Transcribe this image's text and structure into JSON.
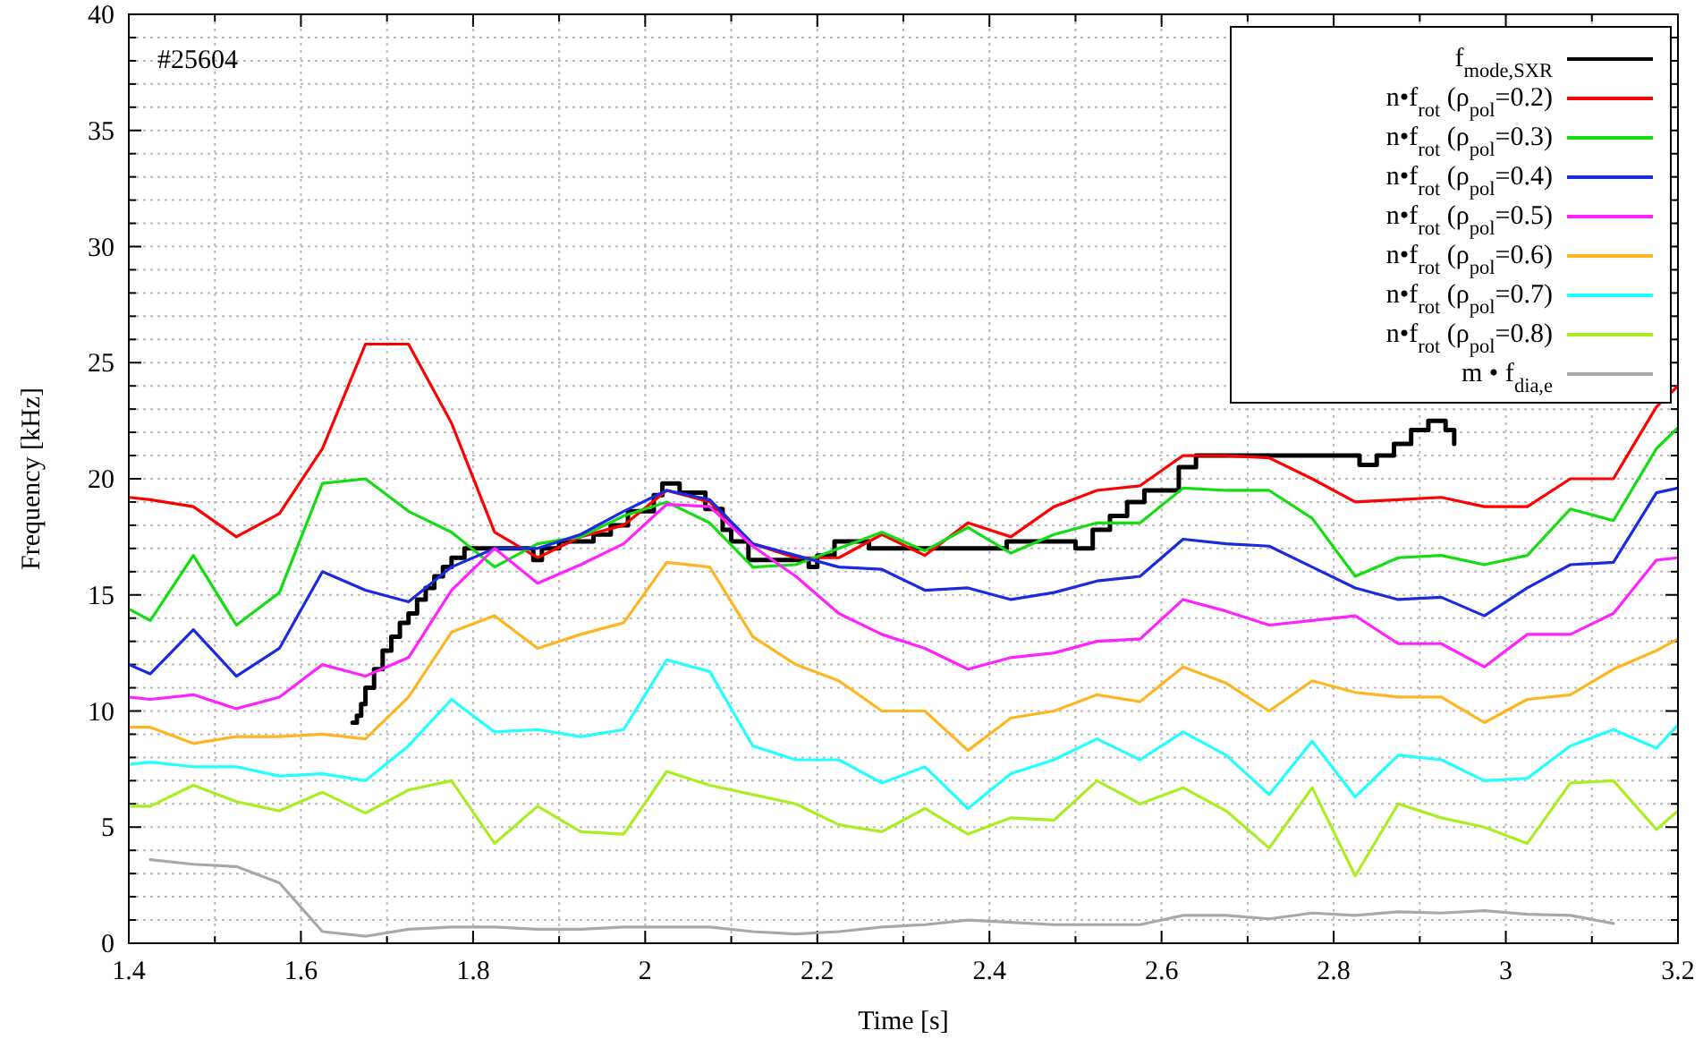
{
  "chart_data": {
    "type": "line",
    "xlabel": "Time [s]",
    "ylabel": "Frequency [kHz]",
    "annotations": [
      "#25604"
    ],
    "xlim": [
      1.4,
      3.2
    ],
    "ylim": [
      0,
      40
    ],
    "xticks": [
      1.4,
      {
        "value": 1.5,
        "label": null
      },
      1.6,
      {
        "value": 1.7,
        "label": null
      },
      1.8,
      {
        "value": 1.9,
        "label": null
      },
      2,
      {
        "value": 2.1,
        "label": null
      },
      2.2,
      {
        "value": 2.3,
        "label": null
      },
      2.4,
      {
        "value": 2.5,
        "label": null
      },
      2.6,
      {
        "value": 2.7,
        "label": null
      },
      2.8,
      {
        "value": 2.9,
        "label": null
      },
      3,
      {
        "value": 3.1,
        "label": null
      },
      3.2
    ],
    "yticks": [
      0,
      {
        "value": 1,
        "label": null
      },
      {
        "value": 2,
        "label": null
      },
      {
        "value": 3,
        "label": null
      },
      {
        "value": 4,
        "label": null
      },
      5,
      {
        "value": 6,
        "label": null
      },
      {
        "value": 7,
        "label": null
      },
      {
        "value": 8,
        "label": null
      },
      {
        "value": 9,
        "label": null
      },
      10,
      {
        "value": 11,
        "label": null
      },
      {
        "value": 12,
        "label": null
      },
      {
        "value": 13,
        "label": null
      },
      {
        "value": 14,
        "label": null
      },
      15,
      {
        "value": 16,
        "label": null
      },
      {
        "value": 17,
        "label": null
      },
      {
        "value": 18,
        "label": null
      },
      {
        "value": 19,
        "label": null
      },
      20,
      {
        "value": 21,
        "label": null
      },
      {
        "value": 22,
        "label": null
      },
      {
        "value": 23,
        "label": null
      },
      {
        "value": 24,
        "label": null
      },
      25,
      {
        "value": 26,
        "label": null
      },
      {
        "value": 27,
        "label": null
      },
      {
        "value": 28,
        "label": null
      },
      {
        "value": 29,
        "label": null
      },
      30,
      {
        "value": 31,
        "label": null
      },
      {
        "value": 32,
        "label": null
      },
      {
        "value": 33,
        "label": null
      },
      {
        "value": 34,
        "label": null
      },
      35,
      {
        "value": 36,
        "label": null
      },
      {
        "value": 37,
        "label": null
      },
      {
        "value": 38,
        "label": null
      },
      {
        "value": 39,
        "label": null
      },
      40
    ],
    "grid": true,
    "legend": "top right",
    "marker": "none",
    "line_style": "solid",
    "x": [
      1.4,
      1.425,
      1.475,
      1.525,
      1.575,
      1.625,
      1.675,
      1.725,
      1.775,
      1.825,
      1.875,
      1.925,
      1.975,
      2.025,
      2.075,
      2.125,
      2.175,
      2.225,
      2.275,
      2.325,
      2.375,
      2.425,
      2.475,
      2.525,
      2.575,
      2.625,
      2.675,
      2.725,
      2.775,
      2.825,
      2.875,
      2.925,
      2.975,
      3.025,
      3.075,
      3.125,
      3.175,
      3.2
    ],
    "series": [
      {
        "name": "f$_{mode,SXR}$",
        "color": "#000000",
        "type": "step",
        "x": [
          1.66,
          1.665,
          1.67,
          1.675,
          1.685,
          1.695,
          1.705,
          1.715,
          1.725,
          1.735,
          1.745,
          1.755,
          1.765,
          1.775,
          1.79,
          1.87,
          1.88,
          1.9,
          1.94,
          1.96,
          1.98,
          2.01,
          2.02,
          2.04,
          2.07,
          2.09,
          2.1,
          2.12,
          2.19,
          2.2,
          2.22,
          2.26,
          2.42,
          2.5,
          2.52,
          2.54,
          2.56,
          2.58,
          2.62,
          2.64,
          2.83,
          2.85,
          2.87,
          2.89,
          2.91,
          2.93,
          2.94
        ],
        "values": [
          9.5,
          9.8,
          10.3,
          11.0,
          11.8,
          12.6,
          13.2,
          13.8,
          14.2,
          14.8,
          15.3,
          15.8,
          16.2,
          16.6,
          17.0,
          16.5,
          17.0,
          17.3,
          17.6,
          18.0,
          18.6,
          19.3,
          19.8,
          19.4,
          18.7,
          17.8,
          17.3,
          16.5,
          16.2,
          16.7,
          17.3,
          17.0,
          17.3,
          17.0,
          17.8,
          18.4,
          19.0,
          19.5,
          20.5,
          21.0,
          20.6,
          21.0,
          21.5,
          22.1,
          22.5,
          22.1,
          21.5
        ]
      },
      {
        "name": "n•f$_{rot}$ (ρ$_{pol}$=0.2)",
        "color": "#ff0000",
        "values": [
          19.2,
          19.1,
          18.8,
          17.5,
          18.5,
          21.3,
          25.8,
          25.8,
          22.4,
          17.7,
          16.6,
          17.5,
          18.0,
          19.5,
          19.0,
          17.2,
          16.6,
          16.6,
          17.6,
          16.7,
          18.1,
          17.5,
          18.8,
          19.5,
          19.7,
          21.0,
          21.0,
          20.9,
          20.0,
          19.0,
          19.1,
          19.2,
          18.8,
          18.8,
          20.0,
          20.0,
          23.1,
          24.0
        ]
      },
      {
        "name": "n•f$_{rot}$ (ρ$_{pol}$=0.3)",
        "color": "#11dd11",
        "values": [
          14.4,
          13.9,
          16.7,
          13.7,
          15.1,
          19.8,
          20.0,
          18.6,
          17.7,
          16.2,
          17.2,
          17.5,
          18.4,
          19.0,
          18.1,
          16.2,
          16.3,
          17.0,
          17.7,
          16.9,
          17.9,
          16.8,
          17.6,
          18.1,
          18.1,
          19.6,
          19.5,
          19.5,
          18.3,
          15.8,
          16.6,
          16.7,
          16.3,
          16.7,
          18.7,
          18.2,
          21.3,
          22.2
        ]
      },
      {
        "name": "n•f$_{rot}$ (ρ$_{pol}$=0.4)",
        "color": "#1a2ae0",
        "values": [
          12.0,
          11.6,
          13.5,
          11.5,
          12.7,
          16.0,
          15.2,
          14.7,
          16.2,
          17.0,
          17.0,
          17.6,
          18.6,
          19.5,
          19.1,
          17.2,
          16.7,
          16.2,
          16.1,
          15.2,
          15.3,
          14.8,
          15.1,
          15.6,
          15.8,
          17.4,
          17.2,
          17.1,
          16.2,
          15.3,
          14.8,
          14.9,
          14.1,
          15.3,
          16.3,
          16.4,
          19.4,
          19.6
        ]
      },
      {
        "name": "n•f$_{rot}$ (ρ$_{pol}$=0.5)",
        "color": "#ff22ff",
        "values": [
          10.6,
          10.5,
          10.7,
          10.1,
          10.6,
          12.0,
          11.5,
          12.3,
          15.2,
          17.0,
          15.5,
          16.3,
          17.2,
          18.9,
          18.8,
          17.1,
          15.8,
          14.2,
          13.3,
          12.7,
          11.8,
          12.3,
          12.5,
          13.0,
          13.1,
          14.8,
          14.3,
          13.7,
          13.9,
          14.1,
          12.9,
          12.9,
          11.9,
          13.3,
          13.3,
          14.2,
          16.5,
          16.6
        ]
      },
      {
        "name": "n•f$_{rot}$ (ρ$_{pol}$=0.6)",
        "color": "#ffb520",
        "values": [
          9.3,
          9.3,
          8.6,
          8.9,
          8.9,
          9.0,
          8.8,
          10.6,
          13.4,
          14.1,
          12.7,
          13.3,
          13.8,
          16.4,
          16.2,
          13.2,
          12.0,
          11.3,
          10.0,
          10.0,
          8.3,
          9.7,
          10.0,
          10.7,
          10.4,
          11.9,
          11.2,
          10.0,
          11.3,
          10.8,
          10.6,
          10.6,
          9.5,
          10.5,
          10.7,
          11.8,
          12.6,
          13.1
        ]
      },
      {
        "name": "n•f$_{rot}$ (ρ$_{pol}$=0.7)",
        "color": "#22ffff",
        "values": [
          7.7,
          7.8,
          7.6,
          7.6,
          7.2,
          7.3,
          7.0,
          8.5,
          10.5,
          9.1,
          9.2,
          8.9,
          9.2,
          12.2,
          11.7,
          8.5,
          7.9,
          7.9,
          6.9,
          7.6,
          5.8,
          7.3,
          7.9,
          8.8,
          7.9,
          9.1,
          8.1,
          6.4,
          8.7,
          6.3,
          8.1,
          7.9,
          7.0,
          7.1,
          8.5,
          9.2,
          8.4,
          9.4
        ]
      },
      {
        "name": "n•f$_{rot}$ (ρ$_{pol}$=0.8)",
        "color": "#aaee22",
        "values": [
          5.9,
          5.9,
          6.8,
          6.1,
          5.7,
          6.5,
          5.6,
          6.6,
          7.0,
          4.3,
          5.9,
          4.8,
          4.7,
          7.4,
          6.8,
          6.4,
          6.0,
          5.1,
          4.8,
          5.8,
          4.7,
          5.4,
          5.3,
          7.0,
          6.0,
          6.7,
          5.7,
          4.1,
          6.7,
          2.9,
          6.0,
          5.4,
          5.0,
          4.3,
          6.9,
          7.0,
          4.9,
          5.7
        ]
      },
      {
        "name": "m • f$_{dia,e}$",
        "color": "#a8a8a8",
        "x": [
          1.425,
          1.475,
          1.525,
          1.575,
          1.625,
          1.675,
          1.725,
          1.775,
          1.825,
          1.875,
          1.925,
          1.975,
          2.025,
          2.075,
          2.125,
          2.175,
          2.225,
          2.275,
          2.325,
          2.375,
          2.425,
          2.475,
          2.525,
          2.575,
          2.625,
          2.675,
          2.725,
          2.775,
          2.825,
          2.875,
          2.925,
          2.975,
          3.025,
          3.075,
          3.125
        ],
        "values": [
          3.6,
          3.4,
          3.3,
          2.6,
          0.5,
          0.3,
          0.6,
          0.7,
          0.7,
          0.6,
          0.6,
          0.7,
          0.7,
          0.7,
          0.5,
          0.4,
          0.5,
          0.7,
          0.8,
          1.0,
          0.9,
          0.8,
          0.8,
          0.8,
          1.2,
          1.2,
          1.05,
          1.3,
          1.2,
          1.35,
          1.3,
          1.4,
          1.25,
          1.2,
          0.85
        ]
      }
    ]
  }
}
